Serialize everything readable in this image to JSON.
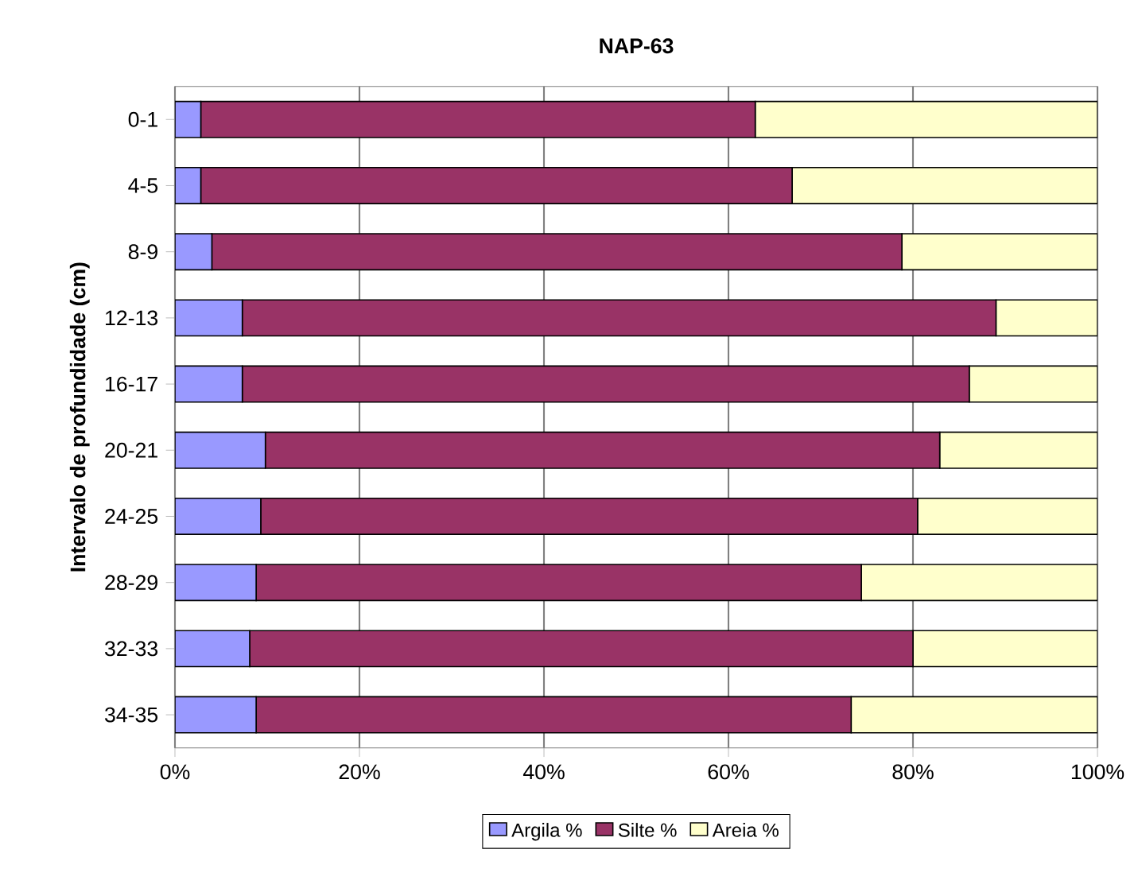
{
  "chart_data": {
    "type": "bar",
    "orientation": "horizontal",
    "stacked": true,
    "title": "NAP-63",
    "ylabel": "Intervalo de profundidade (cm)",
    "categories": [
      "0-1",
      "4-5",
      "8-9",
      "12-13",
      "16-17",
      "20-21",
      "24-25",
      "28-29",
      "32-33",
      "34-35"
    ],
    "series": [
      {
        "name": "Argila %",
        "color": "#9999ff",
        "values": [
          2.8,
          2.8,
          4.0,
          7.3,
          7.3,
          9.8,
          9.3,
          8.8,
          8.1,
          8.8
        ]
      },
      {
        "name": "Silte %",
        "color": "#993366",
        "values": [
          60.1,
          64.1,
          74.8,
          81.7,
          78.8,
          73.1,
          71.2,
          65.6,
          71.9,
          64.5
        ]
      },
      {
        "name": "Areia %",
        "color": "#ffffcc",
        "values": [
          37.1,
          33.1,
          21.2,
          11.0,
          13.9,
          17.1,
          19.5,
          25.6,
          20.0,
          26.7
        ]
      }
    ],
    "xlim": [
      0,
      100
    ],
    "xticks": [
      {
        "value": 0,
        "label": "0%"
      },
      {
        "value": 20,
        "label": "20%"
      },
      {
        "value": 40,
        "label": "40%"
      },
      {
        "value": 60,
        "label": "60%"
      },
      {
        "value": 80,
        "label": "80%"
      },
      {
        "value": 100,
        "label": "100%"
      }
    ],
    "grid": "x",
    "legend": "bottom"
  }
}
